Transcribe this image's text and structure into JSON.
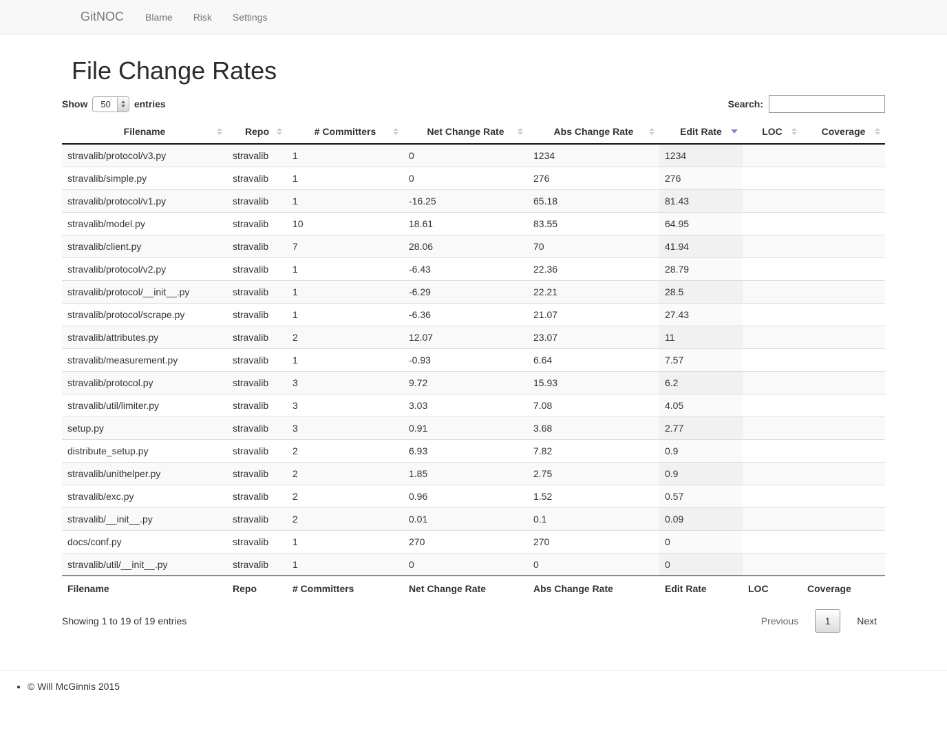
{
  "navbar": {
    "brand": "GitNOC",
    "items": [
      {
        "label": "Blame"
      },
      {
        "label": "Risk"
      },
      {
        "label": "Settings"
      }
    ]
  },
  "page": {
    "title": "File Change Rates"
  },
  "table_controls": {
    "length": {
      "prefix": "Show",
      "value": "50",
      "suffix": "entries"
    },
    "search": {
      "label": "Search:",
      "value": "",
      "placeholder": ""
    }
  },
  "table": {
    "columns": [
      {
        "label": "Filename",
        "sort": "both"
      },
      {
        "label": "Repo",
        "sort": "both"
      },
      {
        "label": "# Committers",
        "sort": "both"
      },
      {
        "label": "Net Change Rate",
        "sort": "both"
      },
      {
        "label": "Abs Change Rate",
        "sort": "both"
      },
      {
        "label": "Edit Rate",
        "sort": "desc"
      },
      {
        "label": "LOC",
        "sort": "both"
      },
      {
        "label": "Coverage",
        "sort": "both"
      }
    ],
    "rows": [
      [
        "stravalib/protocol/v3.py",
        "stravalib",
        "1",
        "0",
        "1234",
        "1234",
        "",
        ""
      ],
      [
        "stravalib/simple.py",
        "stravalib",
        "1",
        "0",
        "276",
        "276",
        "",
        ""
      ],
      [
        "stravalib/protocol/v1.py",
        "stravalib",
        "1",
        "-16.25",
        "65.18",
        "81.43",
        "",
        ""
      ],
      [
        "stravalib/model.py",
        "stravalib",
        "10",
        "18.61",
        "83.55",
        "64.95",
        "",
        ""
      ],
      [
        "stravalib/client.py",
        "stravalib",
        "7",
        "28.06",
        "70",
        "41.94",
        "",
        ""
      ],
      [
        "stravalib/protocol/v2.py",
        "stravalib",
        "1",
        "-6.43",
        "22.36",
        "28.79",
        "",
        ""
      ],
      [
        "stravalib/protocol/__init__.py",
        "stravalib",
        "1",
        "-6.29",
        "22.21",
        "28.5",
        "",
        ""
      ],
      [
        "stravalib/protocol/scrape.py",
        "stravalib",
        "1",
        "-6.36",
        "21.07",
        "27.43",
        "",
        ""
      ],
      [
        "stravalib/attributes.py",
        "stravalib",
        "2",
        "12.07",
        "23.07",
        "11",
        "",
        ""
      ],
      [
        "stravalib/measurement.py",
        "stravalib",
        "1",
        "-0.93",
        "6.64",
        "7.57",
        "",
        ""
      ],
      [
        "stravalib/protocol.py",
        "stravalib",
        "3",
        "9.72",
        "15.93",
        "6.2",
        "",
        ""
      ],
      [
        "stravalib/util/limiter.py",
        "stravalib",
        "3",
        "3.03",
        "7.08",
        "4.05",
        "",
        ""
      ],
      [
        "setup.py",
        "stravalib",
        "3",
        "0.91",
        "3.68",
        "2.77",
        "",
        ""
      ],
      [
        "distribute_setup.py",
        "stravalib",
        "2",
        "6.93",
        "7.82",
        "0.9",
        "",
        ""
      ],
      [
        "stravalib/unithelper.py",
        "stravalib",
        "2",
        "1.85",
        "2.75",
        "0.9",
        "",
        ""
      ],
      [
        "stravalib/exc.py",
        "stravalib",
        "2",
        "0.96",
        "1.52",
        "0.57",
        "",
        ""
      ],
      [
        "stravalib/__init__.py",
        "stravalib",
        "2",
        "0.01",
        "0.1",
        "0.09",
        "",
        ""
      ],
      [
        "docs/conf.py",
        "stravalib",
        "1",
        "270",
        "270",
        "0",
        "",
        ""
      ],
      [
        "stravalib/util/__init__.py",
        "stravalib",
        "1",
        "0",
        "0",
        "0",
        "",
        ""
      ]
    ]
  },
  "table_footer": {
    "info": "Showing 1 to 19 of 19 entries",
    "pagination": {
      "previous": "Previous",
      "pages": [
        {
          "label": "1",
          "current": true
        }
      ],
      "next": "Next"
    }
  },
  "footer": {
    "copyright": "© Will McGinnis 2015"
  },
  "colors": {
    "sort_inactive_arrow": "#cccccc",
    "sort_active_arrow": "#7b86c8",
    "navbar_bg": "#f8f8f8",
    "stripe_row": "#f9f9f9",
    "sorted_cell_odd": "#f1f1f1",
    "sorted_cell_even": "#fafafa"
  }
}
